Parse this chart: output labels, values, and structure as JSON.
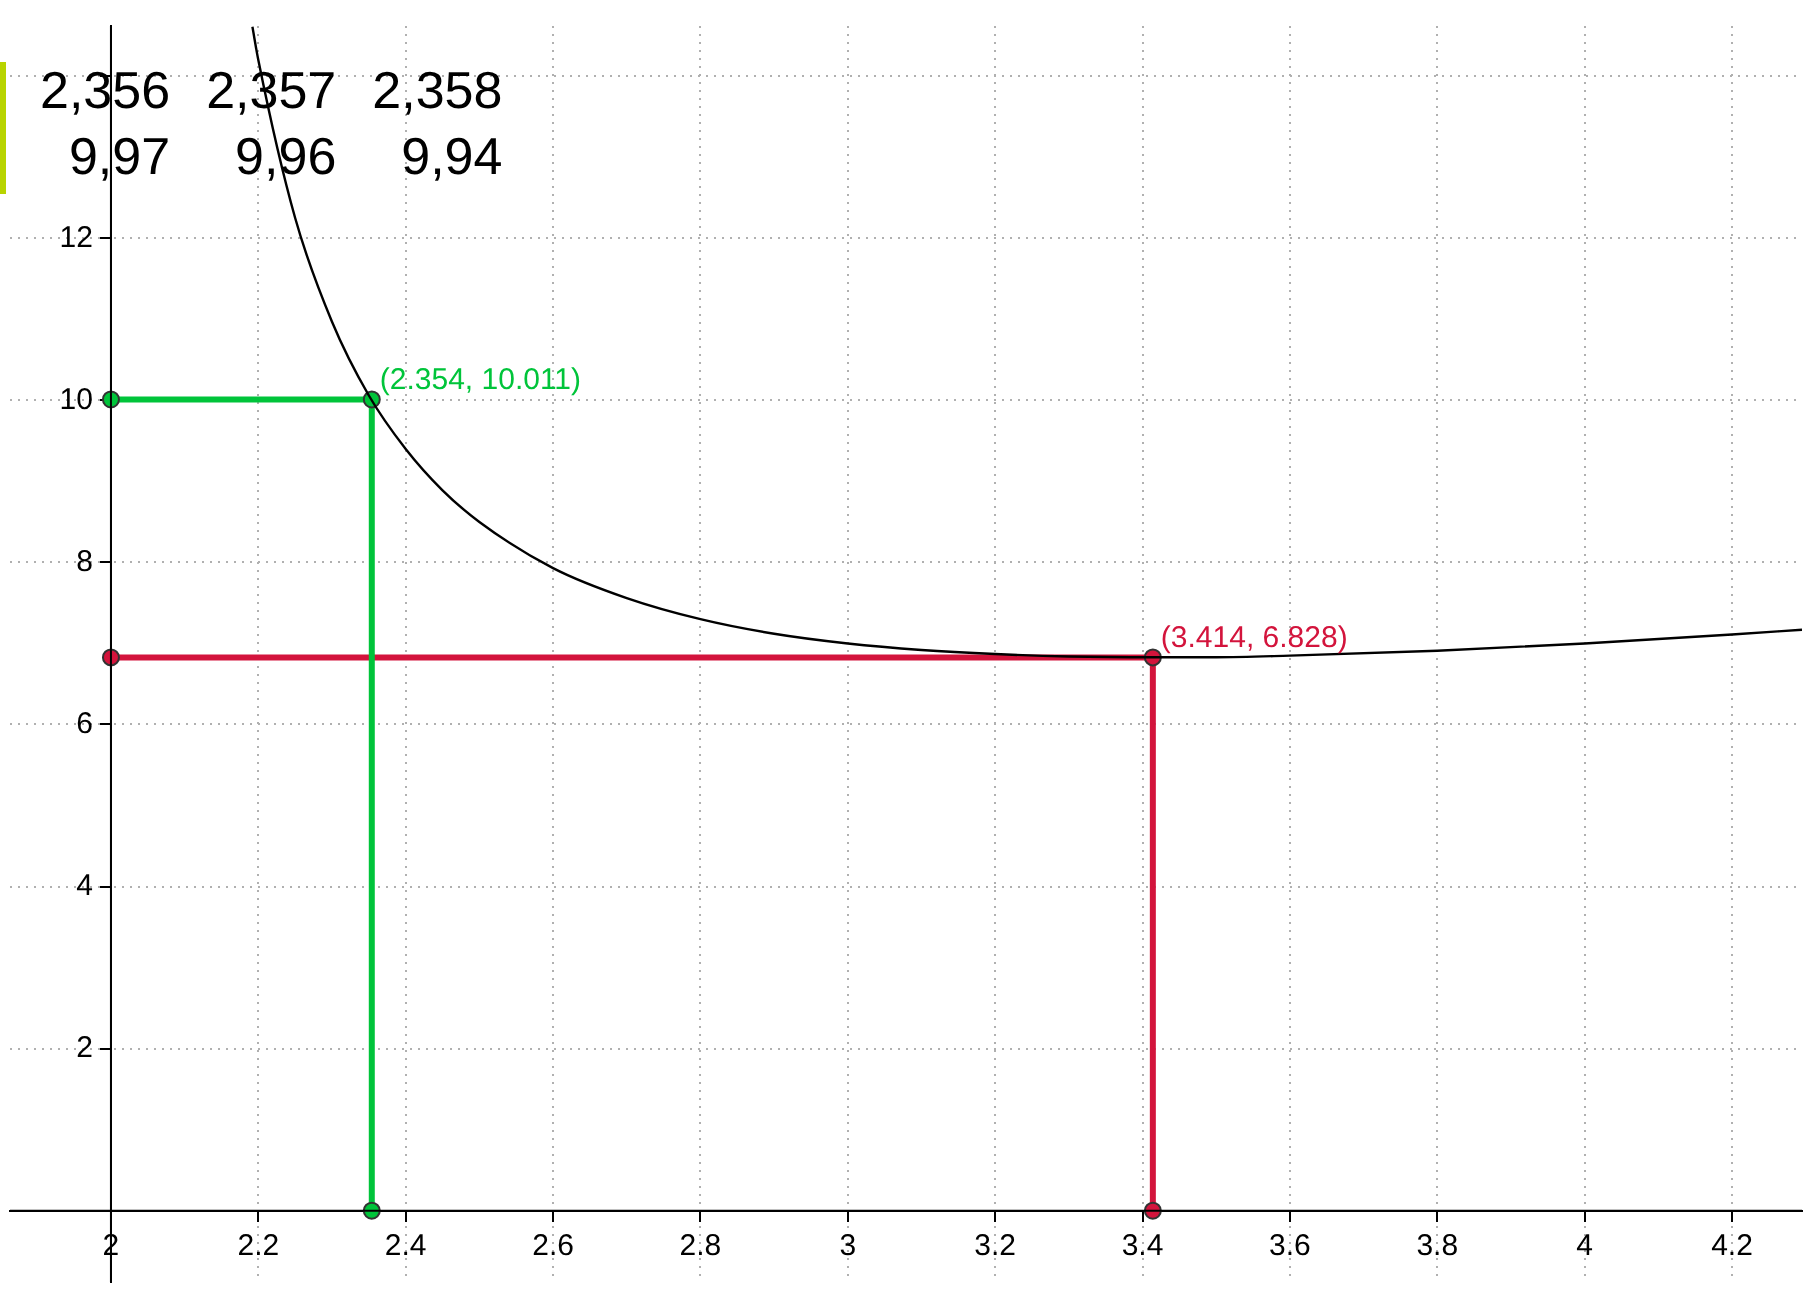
{
  "chart_data": {
    "type": "line",
    "xlim": [
      1.863,
      4.295
    ],
    "ylim": [
      -0.88,
      14.62
    ],
    "xticks": [
      2,
      2.2,
      2.4,
      2.6,
      2.8,
      3,
      3.2,
      3.4,
      3.6,
      3.8,
      4,
      4.2
    ],
    "yticks": [
      {
        "value": 0,
        "label": null
      },
      2,
      4,
      6,
      8,
      10,
      12,
      {
        "value": 14,
        "label": null
      }
    ],
    "grid": true,
    "series": [
      {
        "type": "line",
        "color": "#000000",
        "marker": "none",
        "x": [
          2.192,
          2.2,
          2.25,
          2.3,
          2.35,
          2.4,
          2.45,
          2.5,
          2.6,
          2.7,
          2.8,
          2.9,
          3.0,
          3.1,
          3.2,
          3.3,
          3.414,
          3.5,
          3.6,
          3.8,
          4.0,
          4.2,
          4.295
        ],
        "values": [
          14.61,
          14.2,
          12.25,
          10.97,
          10.06,
          9.4,
          8.89,
          8.5,
          7.93,
          7.56,
          7.3,
          7.12,
          7,
          6.92,
          6.87,
          6.84,
          6.83,
          6.83,
          6.85,
          6.91,
          7,
          7.11,
          7.17
        ]
      },
      {
        "type": "line",
        "color": "#00c43a",
        "marker": "circle",
        "x": [
          2,
          2.354,
          2.354
        ],
        "values": [
          10.011,
          10.011,
          0
        ]
      },
      {
        "type": "line",
        "color": "#d3143c",
        "marker": "circle",
        "x": [
          2,
          3.414,
          3.414
        ],
        "values": [
          6.828,
          6.828,
          0
        ]
      }
    ],
    "annotations": [
      {
        "text": "(2.354, 10.011)",
        "x": 2.354,
        "y": 10.011
      },
      {
        "text": "(3.414, 6.828)",
        "x": 3.414,
        "y": 6.828
      },
      "2,356",
      "2,357",
      "2,358",
      "9,97",
      "9,96",
      "9,94"
    ]
  }
}
